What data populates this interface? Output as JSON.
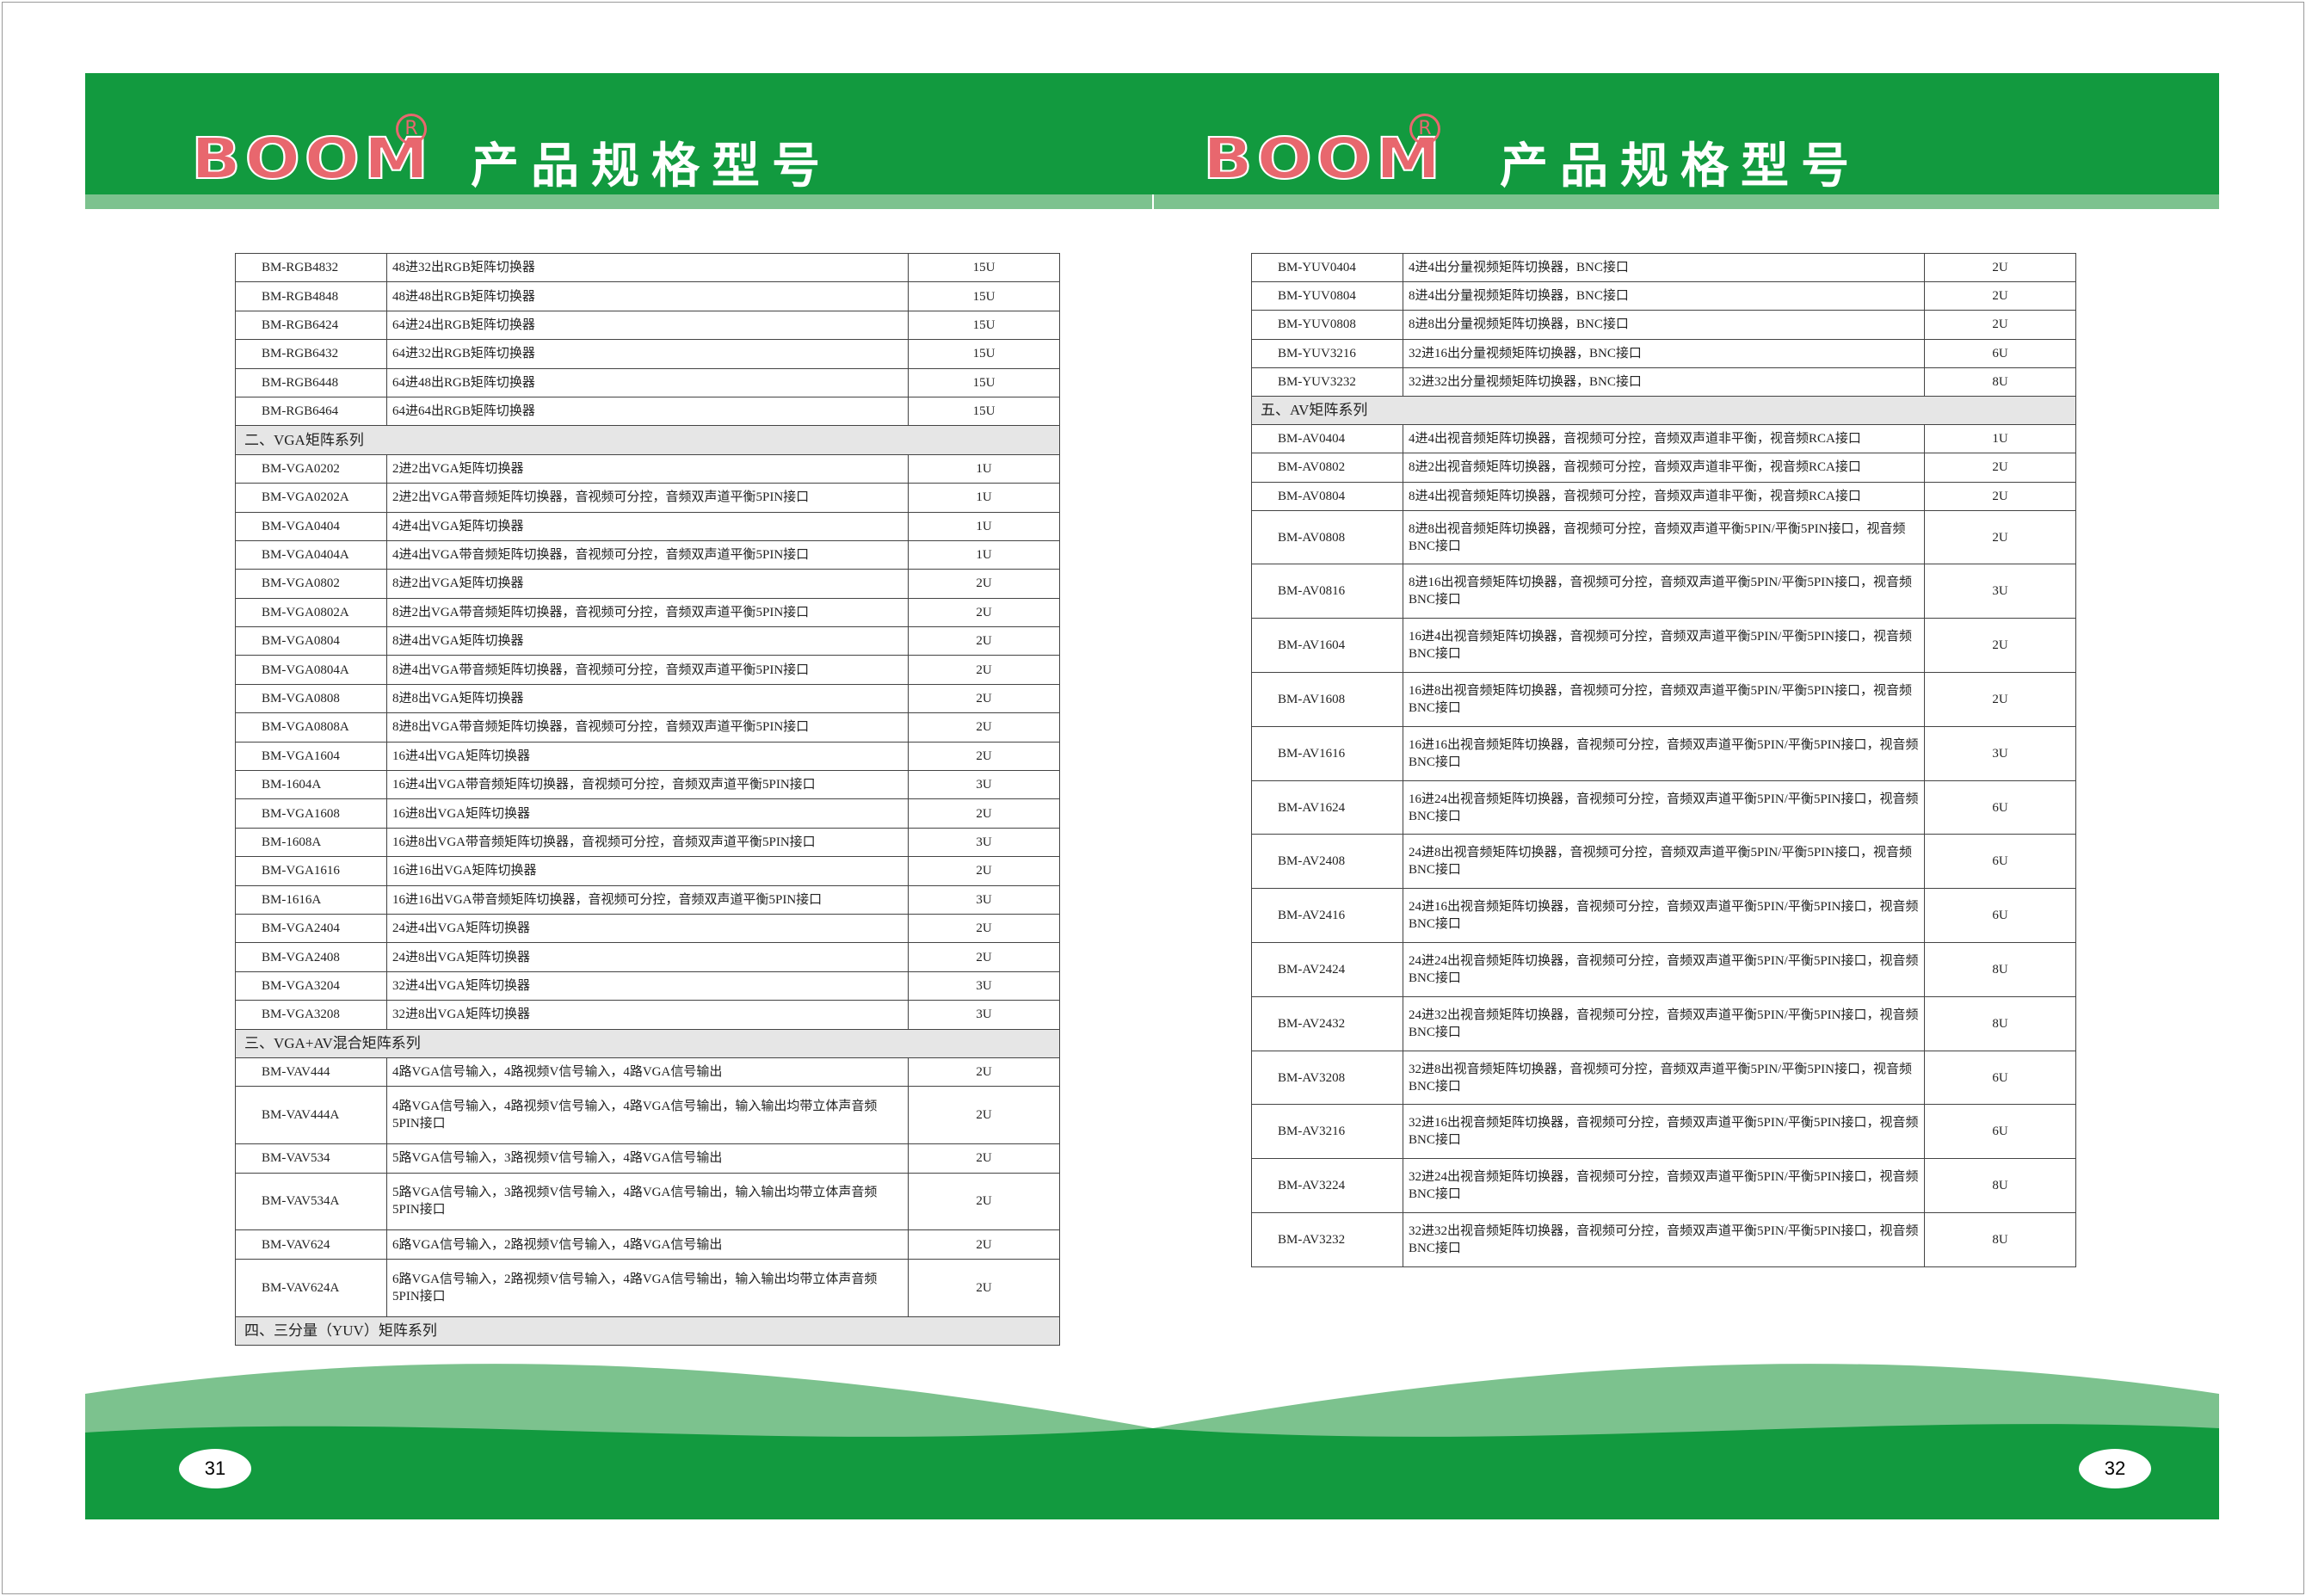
{
  "left_page": {
    "logo": "BOOM",
    "logo_mark": "R",
    "title": "产品规格型号",
    "page_number": "31",
    "rows": [
      [
        "BM-RGB4832",
        "48进32出RGB矩阵切换器",
        "15U"
      ],
      [
        "BM-RGB4848",
        "48进48出RGB矩阵切换器",
        "15U"
      ],
      [
        "BM-RGB6424",
        "64进24出RGB矩阵切换器",
        "15U"
      ],
      [
        "BM-RGB6432",
        "64进32出RGB矩阵切换器",
        "15U"
      ],
      [
        "BM-RGB6448",
        "64进48出RGB矩阵切换器",
        "15U"
      ],
      [
        "BM-RGB6464",
        "64进64出RGB矩阵切换器",
        "15U"
      ],
      [
        "二、VGA矩阵系列"
      ],
      [
        "BM-VGA0202",
        "2进2出VGA矩阵切换器",
        "1U"
      ],
      [
        "BM-VGA0202A",
        "2进2出VGA带音频矩阵切换器，音视频可分控，音频双声道平衡5PIN接口",
        "1U"
      ],
      [
        "BM-VGA0404",
        "4进4出VGA矩阵切换器",
        "1U"
      ],
      [
        "BM-VGA0404A",
        "4进4出VGA带音频矩阵切换器，音视频可分控，音频双声道平衡5PIN接口",
        "1U"
      ],
      [
        "BM-VGA0802",
        "8进2出VGA矩阵切换器",
        "2U"
      ],
      [
        "BM-VGA0802A",
        "8进2出VGA带音频矩阵切换器，音视频可分控，音频双声道平衡5PIN接口",
        "2U"
      ],
      [
        "BM-VGA0804",
        "8进4出VGA矩阵切换器",
        "2U"
      ],
      [
        "BM-VGA0804A",
        "8进4出VGA带音频矩阵切换器，音视频可分控，音频双声道平衡5PIN接口",
        "2U"
      ],
      [
        "BM-VGA0808",
        "8进8出VGA矩阵切换器",
        "2U"
      ],
      [
        "BM-VGA0808A",
        "8进8出VGA带音频矩阵切换器，音视频可分控，音频双声道平衡5PIN接口",
        "2U"
      ],
      [
        "BM-VGA1604",
        "16进4出VGA矩阵切换器",
        "2U"
      ],
      [
        "BM-1604A",
        "16进4出VGA带音频矩阵切换器，音视频可分控，音频双声道平衡5PIN接口",
        "3U"
      ],
      [
        "BM-VGA1608",
        "16进8出VGA矩阵切换器",
        "2U"
      ],
      [
        "BM-1608A",
        "16进8出VGA带音频矩阵切换器，音视频可分控，音频双声道平衡5PIN接口",
        "3U"
      ],
      [
        "BM-VGA1616",
        "16进16出VGA矩阵切换器",
        "2U"
      ],
      [
        "BM-1616A",
        "16进16出VGA带音频矩阵切换器，音视频可分控，音频双声道平衡5PIN接口",
        "3U"
      ],
      [
        "BM-VGA2404",
        "24进4出VGA矩阵切换器",
        "2U"
      ],
      [
        "BM-VGA2408",
        "24进8出VGA矩阵切换器",
        "2U"
      ],
      [
        "BM-VGA3204",
        "32进4出VGA矩阵切换器",
        "3U"
      ],
      [
        "BM-VGA3208",
        "32进8出VGA矩阵切换器",
        "3U"
      ],
      [
        "三、VGA+AV混合矩阵系列"
      ],
      [
        "BM-VAV444",
        "4路VGA信号输入，4路视频V信号输入，4路VGA信号输出",
        "2U"
      ],
      [
        "BM-VAV444A",
        "4路VGA信号输入，4路视频V信号输入，4路VGA信号输出，输入输出均带立体声音频5PIN接口",
        "2U"
      ],
      [
        "BM-VAV534",
        "5路VGA信号输入，3路视频V信号输入，4路VGA信号输出",
        "2U"
      ],
      [
        "BM-VAV534A",
        "5路VGA信号输入，3路视频V信号输入，4路VGA信号输出，输入输出均带立体声音频5PIN接口",
        "2U"
      ],
      [
        "BM-VAV624",
        "6路VGA信号输入，2路视频V信号输入，4路VGA信号输出",
        "2U"
      ],
      [
        "BM-VAV624A",
        "6路VGA信号输入，2路视频V信号输入，4路VGA信号输出，输入输出均带立体声音频5PIN接口",
        "2U"
      ],
      [
        "四、三分量（YUV）矩阵系列"
      ]
    ]
  },
  "right_page": {
    "logo": "BOOM",
    "logo_mark": "R",
    "title": "产品规格型号",
    "page_number": "32",
    "rows": [
      [
        "BM-YUV0404",
        "4进4出分量视频矩阵切换器，BNC接口",
        "2U"
      ],
      [
        "BM-YUV0804",
        "8进4出分量视频矩阵切换器，BNC接口",
        "2U"
      ],
      [
        "BM-YUV0808",
        "8进8出分量视频矩阵切换器，BNC接口",
        "2U"
      ],
      [
        "BM-YUV3216",
        "32进16出分量视频矩阵切换器，BNC接口",
        "6U"
      ],
      [
        "BM-YUV3232",
        "32进32出分量视频矩阵切换器，BNC接口",
        "8U"
      ],
      [
        "五、AV矩阵系列"
      ],
      [
        "BM-AV0404",
        "4进4出视音频矩阵切换器，音视频可分控，音频双声道非平衡，视音频RCA接口",
        "1U"
      ],
      [
        "BM-AV0802",
        "8进2出视音频矩阵切换器，音视频可分控，音频双声道非平衡，视音频RCA接口",
        "2U"
      ],
      [
        "BM-AV0804",
        "8进4出视音频矩阵切换器，音视频可分控，音频双声道非平衡，视音频RCA接口",
        "2U"
      ],
      [
        "BM-AV0808",
        "8进8出视音频矩阵切换器，音视频可分控，音频双声道平衡5PIN/平衡5PIN接口，视音频BNC接口",
        "2U"
      ],
      [
        "BM-AV0816",
        "8进16出视音频矩阵切换器，音视频可分控，音频双声道平衡5PIN/平衡5PIN接口，视音频BNC接口",
        "3U"
      ],
      [
        "BM-AV1604",
        "16进4出视音频矩阵切换器，音视频可分控，音频双声道平衡5PIN/平衡5PIN接口，视音频BNC接口",
        "2U"
      ],
      [
        "BM-AV1608",
        "16进8出视音频矩阵切换器，音视频可分控，音频双声道平衡5PIN/平衡5PIN接口，视音频BNC接口",
        "2U"
      ],
      [
        "BM-AV1616",
        "16进16出视音频矩阵切换器，音视频可分控，音频双声道平衡5PIN/平衡5PIN接口，视音频BNC接口",
        "3U"
      ],
      [
        "BM-AV1624",
        "16进24出视音频矩阵切换器，音视频可分控，音频双声道平衡5PIN/平衡5PIN接口，视音频BNC接口",
        "6U"
      ],
      [
        "BM-AV2408",
        "24进8出视音频矩阵切换器，音视频可分控，音频双声道平衡5PIN/平衡5PIN接口，视音频BNC接口",
        "6U"
      ],
      [
        "BM-AV2416",
        "24进16出视音频矩阵切换器，音视频可分控，音频双声道平衡5PIN/平衡5PIN接口，视音频BNC接口",
        "6U"
      ],
      [
        "BM-AV2424",
        "24进24出视音频矩阵切换器，音视频可分控，音频双声道平衡5PIN/平衡5PIN接口，视音频BNC接口",
        "8U"
      ],
      [
        "BM-AV2432",
        "24进32出视音频矩阵切换器，音视频可分控，音频双声道平衡5PIN/平衡5PIN接口，视音频BNC接口",
        "8U"
      ],
      [
        "BM-AV3208",
        "32进8出视音频矩阵切换器，音视频可分控，音频双声道平衡5PIN/平衡5PIN接口，视音频BNC接口",
        "6U"
      ],
      [
        "BM-AV3216",
        "32进16出视音频矩阵切换器，音视频可分控，音频双声道平衡5PIN/平衡5PIN接口，视音频BNC接口",
        "6U"
      ],
      [
        "BM-AV3224",
        "32进24出视音频矩阵切换器，音视频可分控，音频双声道平衡5PIN/平衡5PIN接口，视音频BNC接口",
        "8U"
      ],
      [
        "BM-AV3232",
        "32进32出视音频矩阵切换器，音视频可分控，音频双声道平衡5PIN/平衡5PIN接口，视音频BNC接口",
        "8U"
      ]
    ]
  }
}
